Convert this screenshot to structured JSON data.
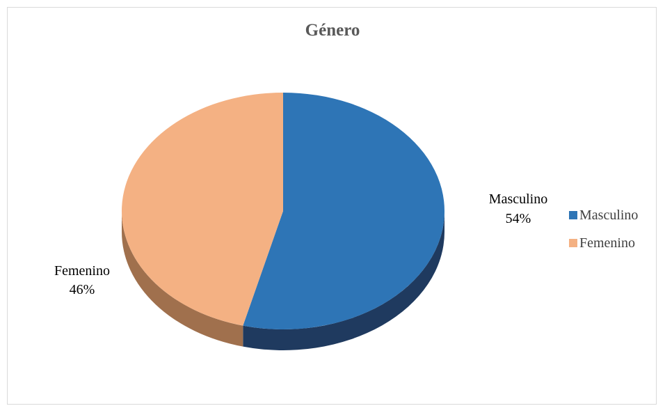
{
  "chart_data": {
    "type": "pie",
    "title": "Género",
    "categories": [
      "Masculino",
      "Femenino"
    ],
    "values": [
      54,
      46
    ],
    "data_labels": [
      {
        "name": "Masculino",
        "value": "54%"
      },
      {
        "name": "Femenino",
        "value": "46%"
      }
    ],
    "colors": [
      "#2E75B6",
      "#F4B183"
    ],
    "shadow_colors": [
      "#1F3A5F",
      "#A0704D"
    ],
    "legend_position": "right",
    "style": "3d"
  }
}
